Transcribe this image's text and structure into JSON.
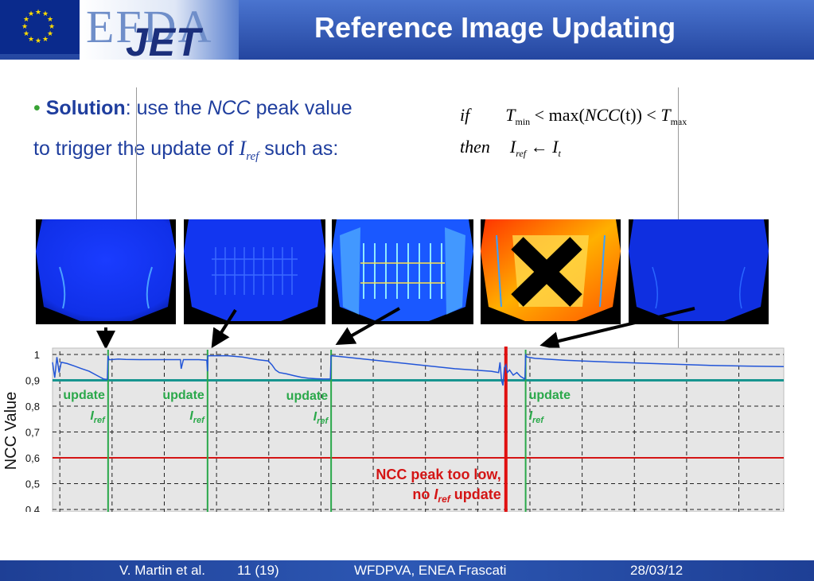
{
  "header": {
    "logo_efda": "EFDA",
    "logo_jet": "JET",
    "title": "Reference Image Updating"
  },
  "bullet": {
    "label": "Solution",
    "text_a": ": use the ",
    "ncc": "NCC",
    "text_b": " peak value",
    "line2_a": "to trigger the update of ",
    "iref_main": "I",
    "iref_sub": "ref",
    "line2_b": " such as:"
  },
  "formula": {
    "if": "if",
    "then": "then",
    "t": "T",
    "min": "min",
    "max_fn": "max(",
    "ncc": "NCC",
    "t_arg": "(t))",
    "lt": "<",
    "tmax_sub": "max",
    "i": "I",
    "ref": "ref",
    "arrow": "←",
    "t_sub": "t"
  },
  "images": [
    {
      "name": "frame-1",
      "style": "blue-dim"
    },
    {
      "name": "frame-2",
      "style": "blue-structured"
    },
    {
      "name": "frame-3",
      "style": "blue-bright"
    },
    {
      "name": "frame-4",
      "style": "saturated-rejected"
    },
    {
      "name": "frame-5",
      "style": "blue-dark"
    }
  ],
  "rejected_icon": "cross-icon",
  "chart_data": {
    "type": "line",
    "ylabel": "NCC Value",
    "yticks": [
      "1",
      "0,9",
      "0,8",
      "0,7",
      "0,6",
      "0,5",
      "0,4"
    ],
    "ylim": [
      0.4,
      1.0
    ],
    "xlim": [
      0,
      100
    ],
    "grid": true,
    "thresholds": [
      {
        "name": "Tmax",
        "value": 0.9,
        "color": "#17958f"
      },
      {
        "name": "Tmin",
        "value": 0.6,
        "color": "#d41515"
      }
    ],
    "update_markers": [
      {
        "x": 7.6,
        "label": "update",
        "iref_main": "I",
        "iref_sub": "ref"
      },
      {
        "x": 21.2,
        "label": "update",
        "iref_main": "I",
        "iref_sub": "ref"
      },
      {
        "x": 38.1,
        "label": "update",
        "iref_main": "I",
        "iref_sub": "ref"
      },
      {
        "x": 64.7,
        "label": "update",
        "iref_main": "I",
        "iref_sub": "ref"
      }
    ],
    "rejected_marker": {
      "x": 62.0,
      "line1": "NCC peak too low,",
      "line2_a": "no ",
      "iref_main": "I",
      "iref_sub": "ref",
      "line2_b": " update"
    },
    "series": [
      {
        "x": [
          0,
          0.3,
          0.6,
          0.9,
          1.2,
          2,
          3,
          4,
          5,
          6,
          7,
          7.5,
          7.6,
          7.7,
          8,
          9,
          10,
          12,
          14,
          16,
          17.5,
          17.6,
          17.9,
          18,
          20,
          21.1,
          21.2,
          21.25,
          21.3,
          22,
          24,
          26,
          28,
          29.5,
          30,
          30.5,
          31,
          32,
          33,
          34,
          35,
          36,
          37,
          38.0,
          38.1,
          38.2,
          40,
          45,
          50,
          55,
          60,
          61.0,
          61.2,
          61.4,
          61.6,
          61.8,
          62.0,
          62.2,
          62.5,
          63,
          63.5,
          64,
          64.6,
          64.7,
          64.9,
          66,
          70,
          75,
          80,
          85,
          90,
          95,
          100
        ],
        "y": [
          0.97,
          0.91,
          0.99,
          0.93,
          0.97,
          0.965,
          0.955,
          0.945,
          0.935,
          0.92,
          0.905,
          0.903,
          0.995,
          0.98,
          0.98,
          0.982,
          0.981,
          0.98,
          0.98,
          0.98,
          0.98,
          0.945,
          0.98,
          0.98,
          0.98,
          0.978,
          0.935,
          0.995,
          0.995,
          0.995,
          0.995,
          0.99,
          0.98,
          0.975,
          0.96,
          0.94,
          0.93,
          0.925,
          0.918,
          0.912,
          0.908,
          0.906,
          0.905,
          0.905,
          0.995,
          0.995,
          0.99,
          0.975,
          0.96,
          0.945,
          0.935,
          0.93,
          0.97,
          0.9,
          0.88,
          0.95,
          0.96,
          0.93,
          0.94,
          0.92,
          0.93,
          0.915,
          0.905,
          0.998,
          0.99,
          0.985,
          0.978,
          0.972,
          0.967,
          0.962,
          0.958,
          0.955,
          0.953
        ]
      }
    ]
  },
  "footer": {
    "author": "V. Martin et al.",
    "page": "11 (19)",
    "event": "WFDPVA, ENEA Frascati",
    "date": "28/03/12"
  }
}
